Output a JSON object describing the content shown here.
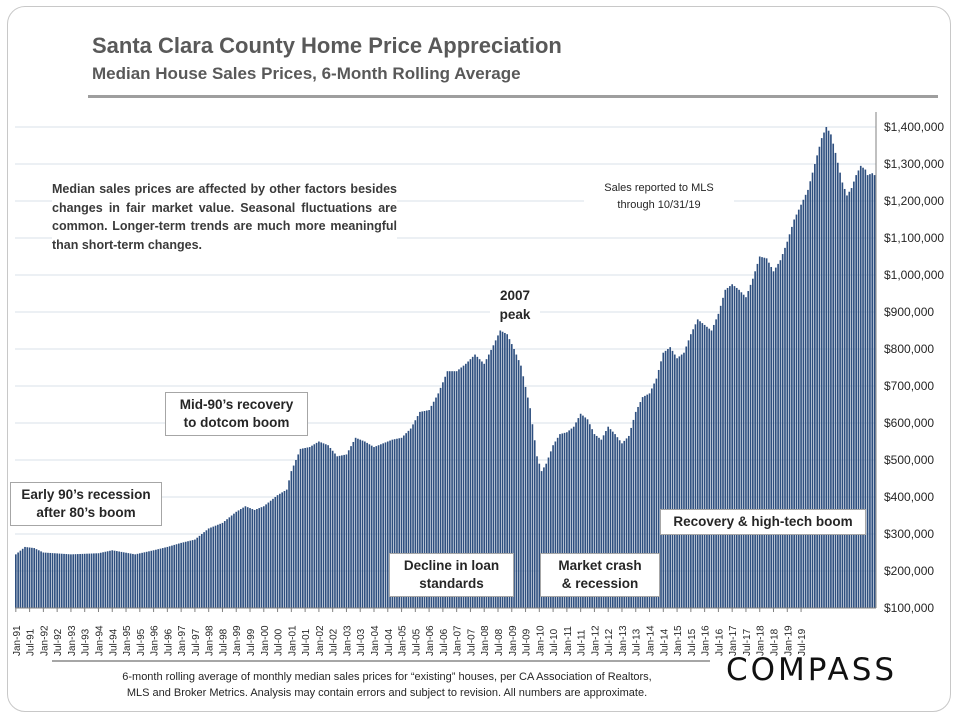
{
  "title": "Santa Clara County Home Price Appreciation",
  "subtitle": "Median House Sales Prices, 6-Month Rolling Average",
  "note": "Median sales prices are affected by other factors besides changes in fair market value. Seasonal fluctuations are common. Longer-term trends are much more meaningful than short-term changes.",
  "mls_note": {
    "line1": "Sales reported to MLS",
    "line2": "through 10/31/19"
  },
  "callouts": {
    "early90s": {
      "line1": "Early 90’s recession",
      "line2": "after 80’s boom"
    },
    "mid90s": {
      "line1": "Mid-90’s recovery",
      "line2": "to dotcom boom"
    },
    "peak2007": {
      "line1": "2007",
      "line2": "peak"
    },
    "decline": {
      "line1": "Decline in loan",
      "line2": "standards"
    },
    "crash": {
      "line1": "Market crash",
      "line2": "& recession"
    },
    "recovery": {
      "line1": "Recovery & high-tech boom"
    }
  },
  "footnote": {
    "line1": "6-month rolling average of monthly median sales prices for “existing” houses, per CA Association of Realtors,",
    "line2": "MLS and Broker Metrics.  Analysis may contain errors and subject to revision. All numbers are approximate."
  },
  "logo": "COMPASS",
  "colors": {
    "bar": "#2e4f7f",
    "grid": "#d9e2ea",
    "text": "#262626"
  },
  "chart_data": {
    "type": "bar",
    "title": "Santa Clara County Home Price Appreciation",
    "subtitle": "Median House Sales Prices, 6-Month Rolling Average",
    "series_name": "6-month rolling average median house sales price",
    "start_month": "Jan-91",
    "end_month": "Oct-19",
    "ylim": [
      100000,
      1420000
    ],
    "y_ticks": [
      100000,
      200000,
      300000,
      400000,
      500000,
      600000,
      700000,
      800000,
      900000,
      1000000,
      1100000,
      1200000,
      1300000,
      1400000
    ],
    "y_tick_labels": [
      "$100,000",
      "$200,000",
      "$300,000",
      "$400,000",
      "$500,000",
      "$600,000",
      "$700,000",
      "$800,000",
      "$900,000",
      "$1,000,000",
      "$1,100,000",
      "$1,200,000",
      "$1,300,000",
      "$1,400,000"
    ],
    "y_axis_side": "right",
    "x_tick_labels": [
      "Jan-91",
      "Jul-91",
      "Jan-92",
      "Jul-92",
      "Jan-93",
      "Jul-93",
      "Jan-94",
      "Jul-94",
      "Jan-95",
      "Jul-95",
      "Jan-96",
      "Jul-96",
      "Jan-97",
      "Jul-97",
      "Jan-98",
      "Jul-98",
      "Jan-99",
      "Jul-99",
      "Jan-00",
      "Jul-00",
      "Jan-01",
      "Jul-01",
      "Jan-02",
      "Jul-02",
      "Jan-03",
      "Jul-03",
      "Jan-04",
      "Jul-04",
      "Jan-05",
      "Jul-05",
      "Jan-06",
      "Jul-06",
      "Jan-07",
      "Jul-07",
      "Jan-08",
      "Jul-08",
      "Jan-09",
      "Jul-09",
      "Jan-10",
      "Jul-10",
      "Jan-11",
      "Jul-11",
      "Jan-12",
      "Jul-12",
      "Jan-13",
      "Jul-13",
      "Jan-14",
      "Jul-14",
      "Jan-15",
      "Jul-15",
      "Jan-16",
      "Jul-16",
      "Jan-17",
      "Jul-17",
      "Jan-18",
      "Jul-18",
      "Jan-19",
      "Jul-19"
    ],
    "anchors": [
      [
        0,
        245000
      ],
      [
        4,
        265000
      ],
      [
        8,
        262000
      ],
      [
        12,
        250000
      ],
      [
        24,
        245000
      ],
      [
        36,
        248000
      ],
      [
        42,
        256000
      ],
      [
        52,
        245000
      ],
      [
        60,
        256000
      ],
      [
        66,
        265000
      ],
      [
        72,
        276000
      ],
      [
        78,
        285000
      ],
      [
        84,
        315000
      ],
      [
        90,
        330000
      ],
      [
        96,
        360000
      ],
      [
        100,
        375000
      ],
      [
        104,
        365000
      ],
      [
        108,
        375000
      ],
      [
        114,
        405000
      ],
      [
        118,
        420000
      ],
      [
        120,
        470000
      ],
      [
        124,
        530000
      ],
      [
        128,
        535000
      ],
      [
        132,
        550000
      ],
      [
        136,
        540000
      ],
      [
        140,
        510000
      ],
      [
        144,
        515000
      ],
      [
        148,
        560000
      ],
      [
        152,
        550000
      ],
      [
        156,
        535000
      ],
      [
        160,
        545000
      ],
      [
        164,
        555000
      ],
      [
        168,
        560000
      ],
      [
        172,
        585000
      ],
      [
        176,
        630000
      ],
      [
        180,
        635000
      ],
      [
        184,
        680000
      ],
      [
        188,
        740000
      ],
      [
        192,
        740000
      ],
      [
        196,
        760000
      ],
      [
        200,
        785000
      ],
      [
        204,
        760000
      ],
      [
        208,
        810000
      ],
      [
        211,
        850000
      ],
      [
        214,
        840000
      ],
      [
        217,
        800000
      ],
      [
        220,
        755000
      ],
      [
        224,
        640000
      ],
      [
        227,
        510000
      ],
      [
        229,
        470000
      ],
      [
        231,
        490000
      ],
      [
        234,
        540000
      ],
      [
        237,
        570000
      ],
      [
        240,
        575000
      ],
      [
        243,
        590000
      ],
      [
        246,
        625000
      ],
      [
        249,
        610000
      ],
      [
        252,
        570000
      ],
      [
        255,
        555000
      ],
      [
        258,
        590000
      ],
      [
        261,
        570000
      ],
      [
        264,
        545000
      ],
      [
        267,
        565000
      ],
      [
        270,
        630000
      ],
      [
        273,
        670000
      ],
      [
        276,
        680000
      ],
      [
        279,
        720000
      ],
      [
        282,
        790000
      ],
      [
        285,
        805000
      ],
      [
        288,
        775000
      ],
      [
        291,
        790000
      ],
      [
        294,
        840000
      ],
      [
        297,
        880000
      ],
      [
        300,
        865000
      ],
      [
        303,
        850000
      ],
      [
        306,
        895000
      ],
      [
        309,
        960000
      ],
      [
        312,
        975000
      ],
      [
        315,
        960000
      ],
      [
        318,
        940000
      ],
      [
        321,
        990000
      ],
      [
        324,
        1050000
      ],
      [
        327,
        1045000
      ],
      [
        330,
        1010000
      ],
      [
        333,
        1040000
      ],
      [
        336,
        1090000
      ],
      [
        339,
        1150000
      ],
      [
        342,
        1190000
      ],
      [
        345,
        1230000
      ],
      [
        348,
        1300000
      ],
      [
        351,
        1370000
      ],
      [
        353,
        1400000
      ],
      [
        355,
        1380000
      ],
      [
        357,
        1330000
      ],
      [
        360,
        1250000
      ],
      [
        362,
        1215000
      ],
      [
        364,
        1235000
      ],
      [
        366,
        1270000
      ],
      [
        368,
        1295000
      ],
      [
        370,
        1285000
      ],
      [
        371,
        1270000
      ],
      [
        373,
        1275000
      ],
      [
        374,
        1270000
      ]
    ]
  }
}
